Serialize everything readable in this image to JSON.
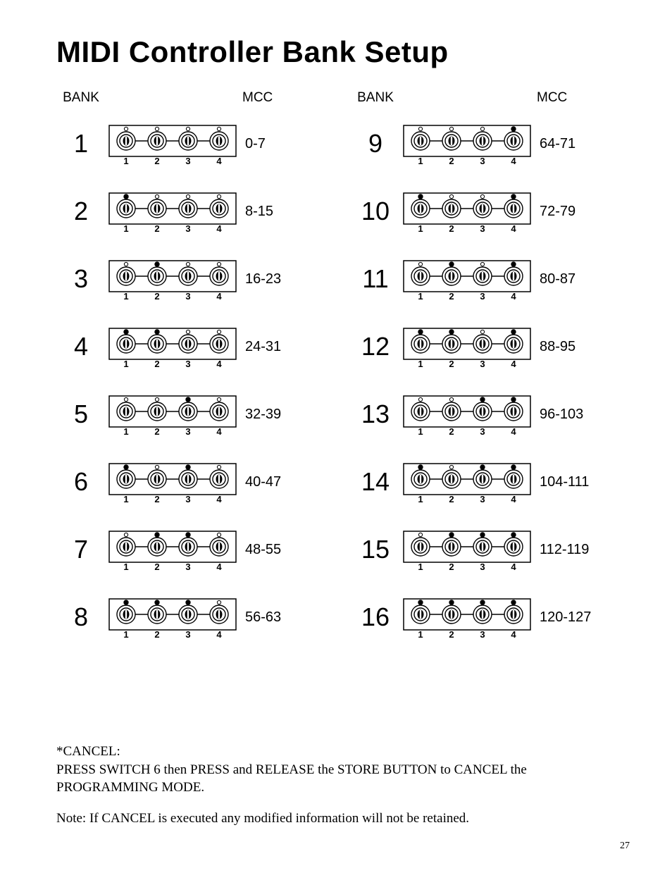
{
  "title": "MIDI Controller Bank Setup",
  "headers": {
    "bank": "BANK",
    "mcc": "MCC"
  },
  "diagram": {
    "switch_labels": [
      "1",
      "2",
      "3",
      "4"
    ],
    "box_stroke": "#000000",
    "led_off_fill": "#ffffff",
    "led_on_fill": "#000000",
    "knob_outer": "#000000",
    "knob_inner_fill": "#ffffff"
  },
  "rows": [
    {
      "bank": "1",
      "mcc": "0-7",
      "leds": [
        0,
        0,
        0,
        0
      ]
    },
    {
      "bank": "2",
      "mcc": "8-15",
      "leds": [
        1,
        0,
        0,
        0
      ]
    },
    {
      "bank": "3",
      "mcc": "16-23",
      "leds": [
        0,
        1,
        0,
        0
      ]
    },
    {
      "bank": "4",
      "mcc": "24-31",
      "leds": [
        1,
        1,
        0,
        0
      ]
    },
    {
      "bank": "5",
      "mcc": "32-39",
      "leds": [
        0,
        0,
        1,
        0
      ]
    },
    {
      "bank": "6",
      "mcc": "40-47",
      "leds": [
        1,
        0,
        1,
        0
      ]
    },
    {
      "bank": "7",
      "mcc": "48-55",
      "leds": [
        0,
        1,
        1,
        0
      ]
    },
    {
      "bank": "8",
      "mcc": "56-63",
      "leds": [
        1,
        1,
        1,
        0
      ]
    },
    {
      "bank": "9",
      "mcc": "64-71",
      "leds": [
        0,
        0,
        0,
        1
      ]
    },
    {
      "bank": "10",
      "mcc": "72-79",
      "leds": [
        1,
        0,
        0,
        1
      ]
    },
    {
      "bank": "11",
      "mcc": "80-87",
      "leds": [
        0,
        1,
        0,
        1
      ]
    },
    {
      "bank": "12",
      "mcc": "88-95",
      "leds": [
        1,
        1,
        0,
        1
      ]
    },
    {
      "bank": "13",
      "mcc": "96-103",
      "leds": [
        0,
        0,
        1,
        1
      ]
    },
    {
      "bank": "14",
      "mcc": "104-111",
      "leds": [
        1,
        0,
        1,
        1
      ]
    },
    {
      "bank": "15",
      "mcc": "112-119",
      "leds": [
        0,
        1,
        1,
        1
      ]
    },
    {
      "bank": "16",
      "mcc": "120-127",
      "leds": [
        1,
        1,
        1,
        1
      ]
    }
  ],
  "footnotes": {
    "cancel_label": "*CANCEL:",
    "cancel_text": "PRESS SWITCH 6  then PRESS and RELEASE the STORE BUTTON to CANCEL the PROGRAMMING MODE.",
    "note_text": "Note: If CANCEL is executed any modified information will not be retained."
  },
  "page_number": "27"
}
